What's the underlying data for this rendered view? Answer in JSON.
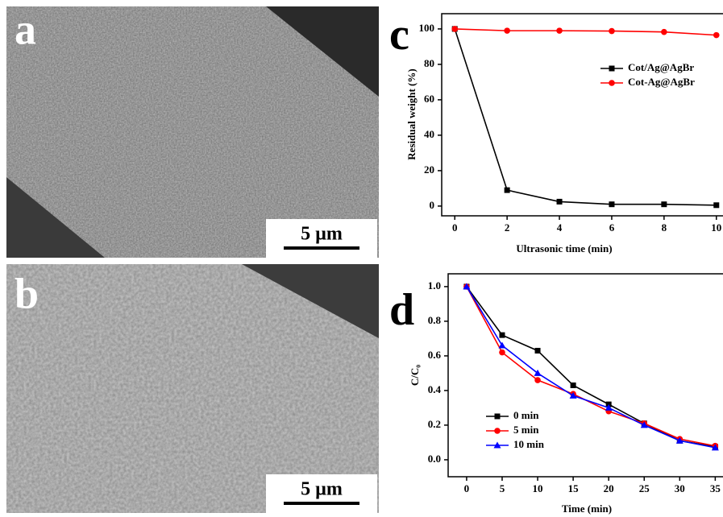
{
  "panels": [
    {
      "label": "a",
      "scale_bar": "5 µm"
    },
    {
      "label": "b",
      "scale_bar": "5 µm"
    }
  ],
  "chart_data": [
    {
      "type": "line",
      "label": "c",
      "x_label": "Ultrasonic time (min)",
      "y_label": "Residual weight (%)",
      "x": [
        0,
        2,
        4,
        6,
        8,
        10
      ],
      "xlim": [
        -0.5,
        10.5
      ],
      "xticks": [
        0,
        2,
        4,
        6,
        8,
        10
      ],
      "ylim": [
        -5.5,
        108.6
      ],
      "yticks": [
        0,
        20,
        40,
        60,
        80,
        100
      ],
      "legend": "upper right",
      "series": [
        {
          "name": "Cot/Ag@AgBr",
          "color": "#000000",
          "marker": "square",
          "values": [
            100,
            9,
            2.5,
            1,
            1,
            0.5
          ]
        },
        {
          "name": "Cot-Ag@AgBr",
          "color": "#ff0000",
          "marker": "circle",
          "values": [
            100,
            99,
            99,
            98.8,
            98.3,
            96.5
          ]
        }
      ]
    },
    {
      "type": "line",
      "label": "d",
      "x_label": "Time (min)",
      "y_label": "C/C₀",
      "x": [
        0,
        5,
        10,
        15,
        20,
        25,
        30,
        35
      ],
      "xlim": [
        -2.6,
        37
      ],
      "xticks": [
        0,
        5,
        10,
        15,
        20,
        25,
        30,
        35
      ],
      "ylim": [
        -0.098,
        1.074
      ],
      "yticks": [
        {
          "value": 0,
          "label": "0.0"
        },
        0.2,
        0.4,
        0.6,
        0.8,
        {
          "value": 1,
          "label": "1.0"
        }
      ],
      "legend": "lower left",
      "series": [
        {
          "name": "0 min",
          "color": "#000000",
          "marker": "square",
          "values": [
            1,
            0.72,
            0.63,
            0.43,
            0.32,
            0.21,
            0.11,
            0.075
          ]
        },
        {
          "name": "5 min",
          "color": "#ff0000",
          "marker": "circle",
          "values": [
            1,
            0.62,
            0.46,
            0.38,
            0.28,
            0.21,
            0.12,
            0.08
          ]
        },
        {
          "name": "10 min",
          "color": "#0000ff",
          "marker": "triangle",
          "values": [
            1,
            0.66,
            0.5,
            0.37,
            0.3,
            0.2,
            0.11,
            0.07
          ]
        }
      ]
    }
  ]
}
